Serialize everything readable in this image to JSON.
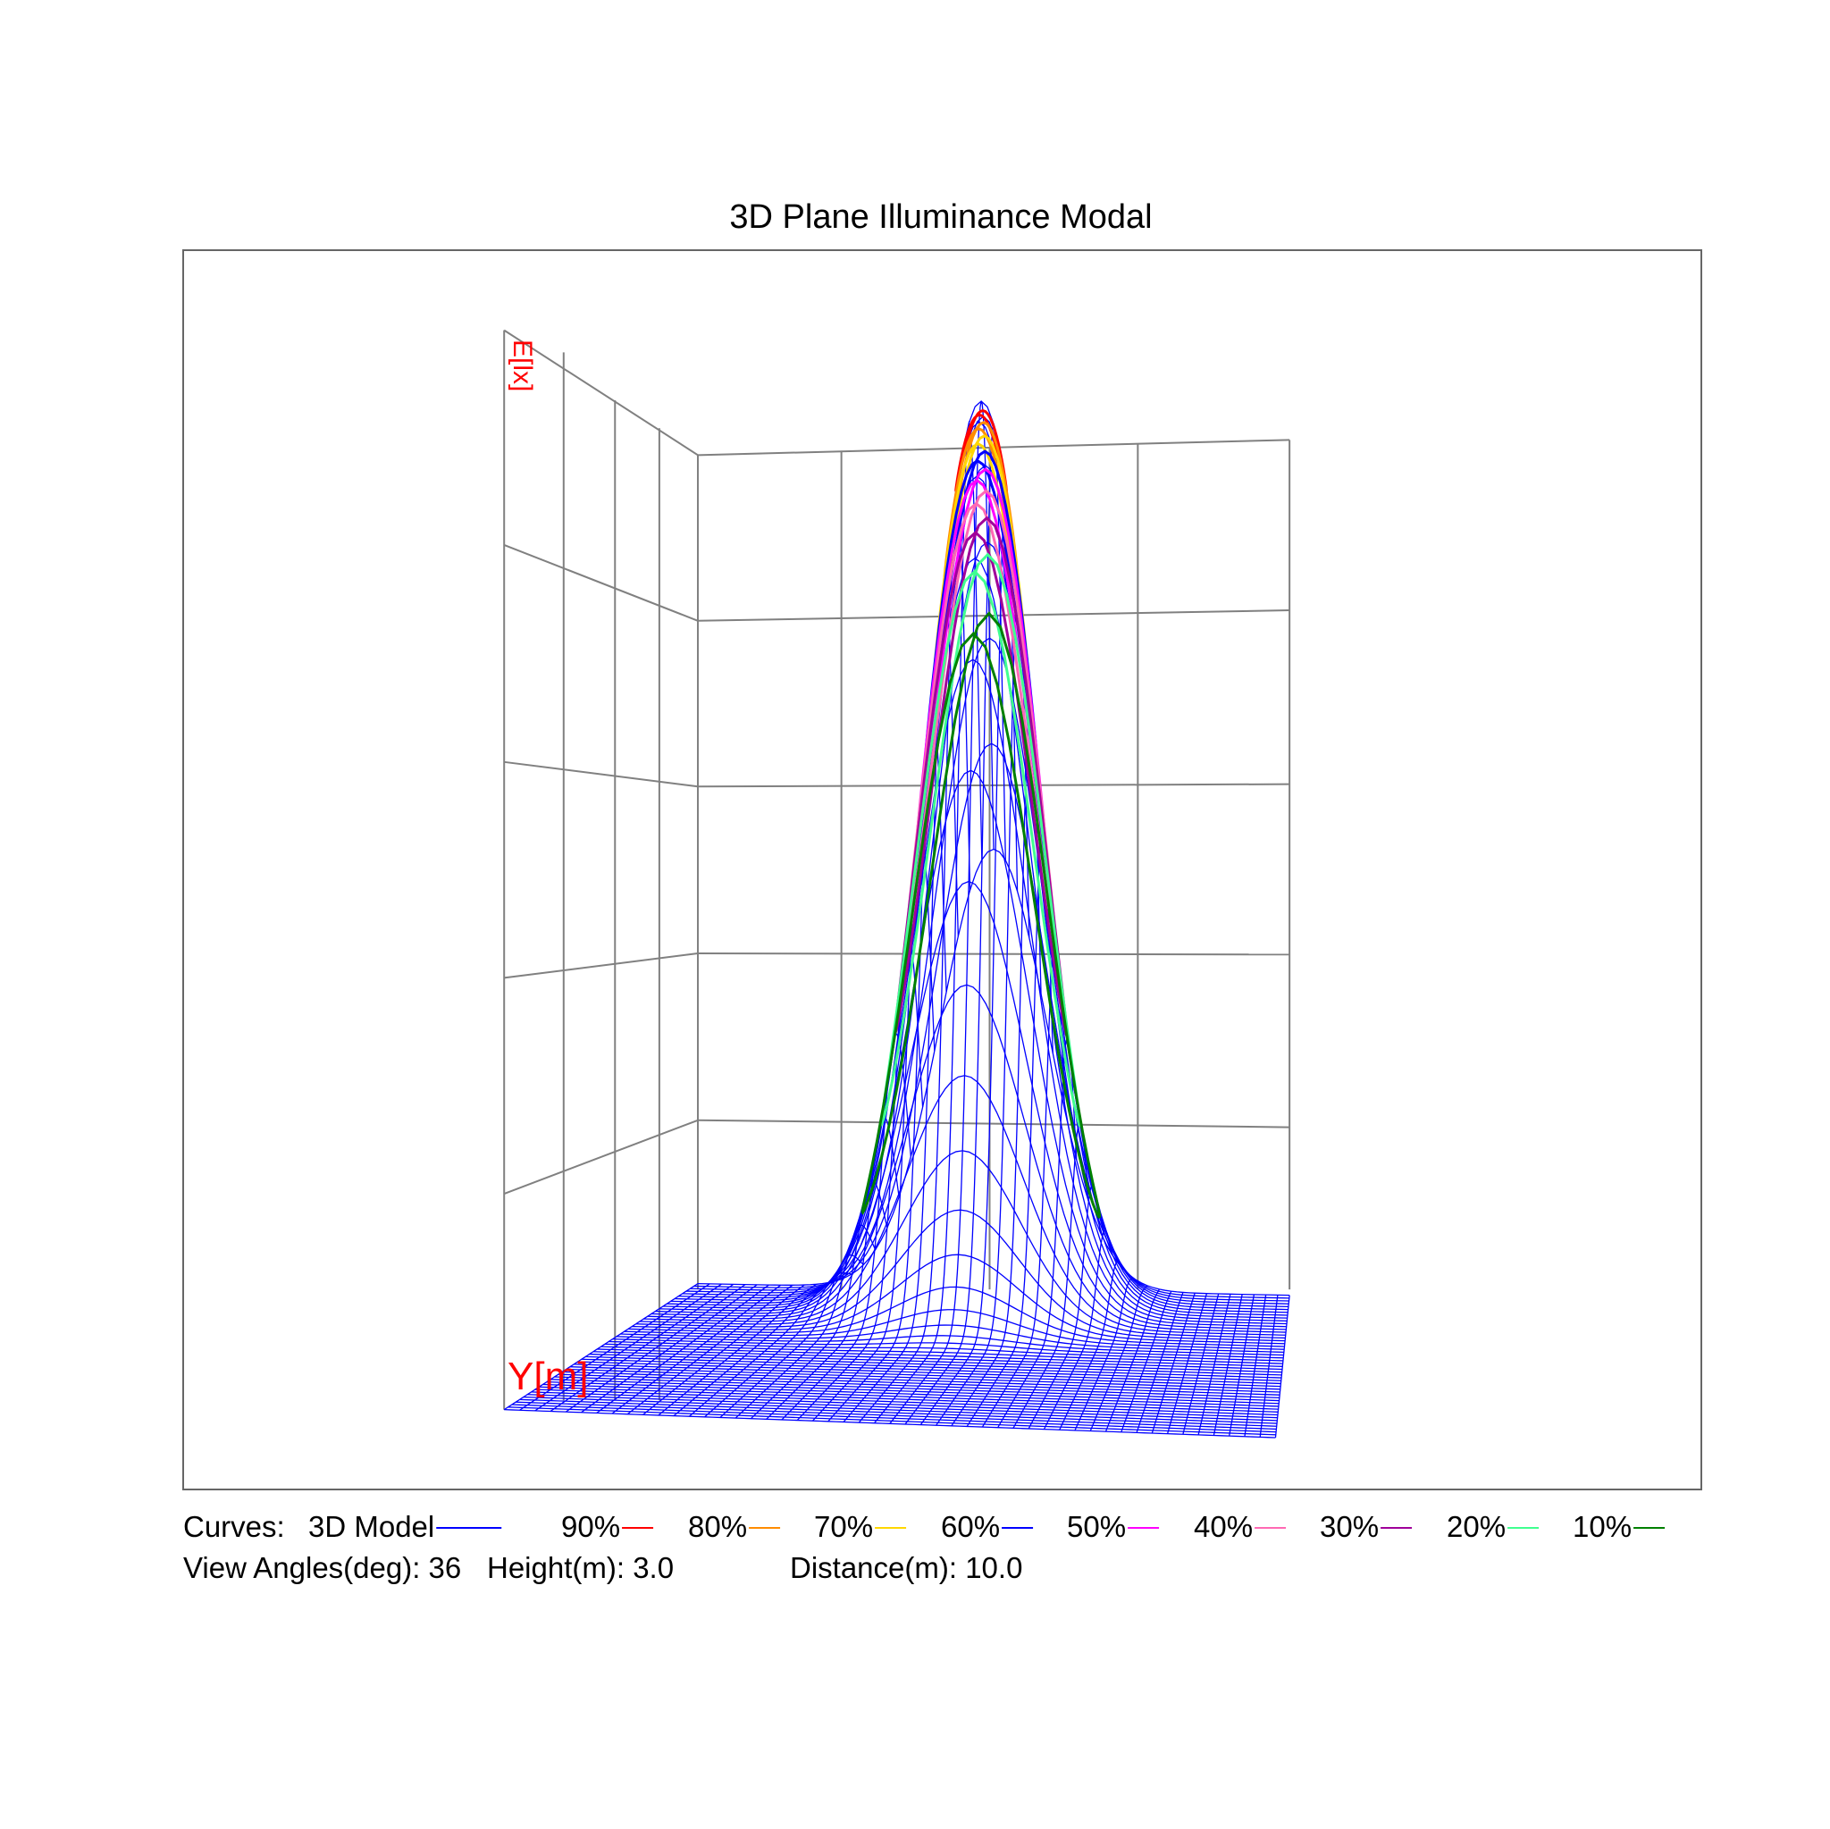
{
  "chart_data": {
    "type": "surface",
    "title": "3D Plane Illuminance Modal",
    "axis_labels": {
      "z": "E[lx]",
      "y": "Y[m]"
    },
    "surface_color": "#0000ff",
    "grid_color": "#808080",
    "curves_label": "Curves:",
    "legend": [
      {
        "name": "3D Model",
        "color": "#0000ff"
      },
      {
        "name": "90%",
        "color": "#ff0000"
      },
      {
        "name": "80%",
        "color": "#ff8c00"
      },
      {
        "name": "70%",
        "color": "#ffd700"
      },
      {
        "name": "60%",
        "color": "#0000ff"
      },
      {
        "name": "50%",
        "color": "#ff00ff"
      },
      {
        "name": "40%",
        "color": "#ff69b4"
      },
      {
        "name": "30%",
        "color": "#a0009a"
      },
      {
        "name": "20%",
        "color": "#40ff90"
      },
      {
        "name": "10%",
        "color": "#008000"
      }
    ],
    "info": {
      "view_angles": "View Angles(deg): 36",
      "height": "Height(m): 3.0",
      "distance": "Distance(m): 10.0"
    }
  }
}
